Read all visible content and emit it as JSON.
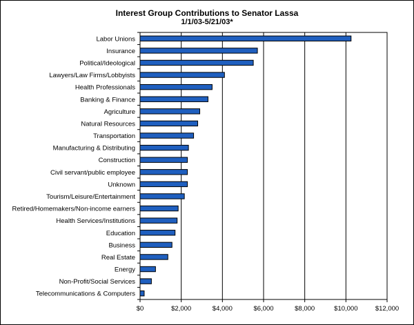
{
  "chart_data": {
    "type": "bar",
    "orientation": "horizontal",
    "title": "Interest Group Contributions to Senator Lassa",
    "subtitle": "1/1/03-5/21/03*",
    "categories": [
      "Labor Unions",
      "Insurance",
      "Political/Ideological",
      "Lawyers/Law Firms/Lobbyists",
      "Health Professionals",
      "Banking & Finance",
      "Agriculture",
      "Natural Resources",
      "Transportation",
      "Manufacturing & Distributing",
      "Construction",
      "Civil servant/public employee",
      "Unknown",
      "Tourism/Leisure/Entertainment",
      "Retired/Homemakers/Non-income earners",
      "Health Services/Institutions",
      "Education",
      "Business",
      "Real Estate",
      "Energy",
      "Non-Profit/Social Services",
      "Telecommunications & Computers"
    ],
    "values": [
      10250,
      5700,
      5500,
      4100,
      3500,
      3300,
      2900,
      2800,
      2600,
      2350,
      2300,
      2300,
      2300,
      2150,
      1850,
      1800,
      1700,
      1550,
      1350,
      750,
      550,
      200
    ],
    "xlabel": "",
    "ylabel": "",
    "xlim": [
      0,
      12000
    ],
    "xticks": [
      0,
      2000,
      4000,
      6000,
      8000,
      10000,
      12000
    ],
    "xtick_labels": [
      "$0",
      "$2,000",
      "$4,000",
      "$6,000",
      "$8,000",
      "$10,000",
      "$12,000"
    ],
    "grid": "vertical",
    "legend": "none",
    "colors": {
      "bar": "#1f5fbf",
      "bar_edge": "#000000",
      "grid": "#000000",
      "background": "#ffffff"
    }
  }
}
